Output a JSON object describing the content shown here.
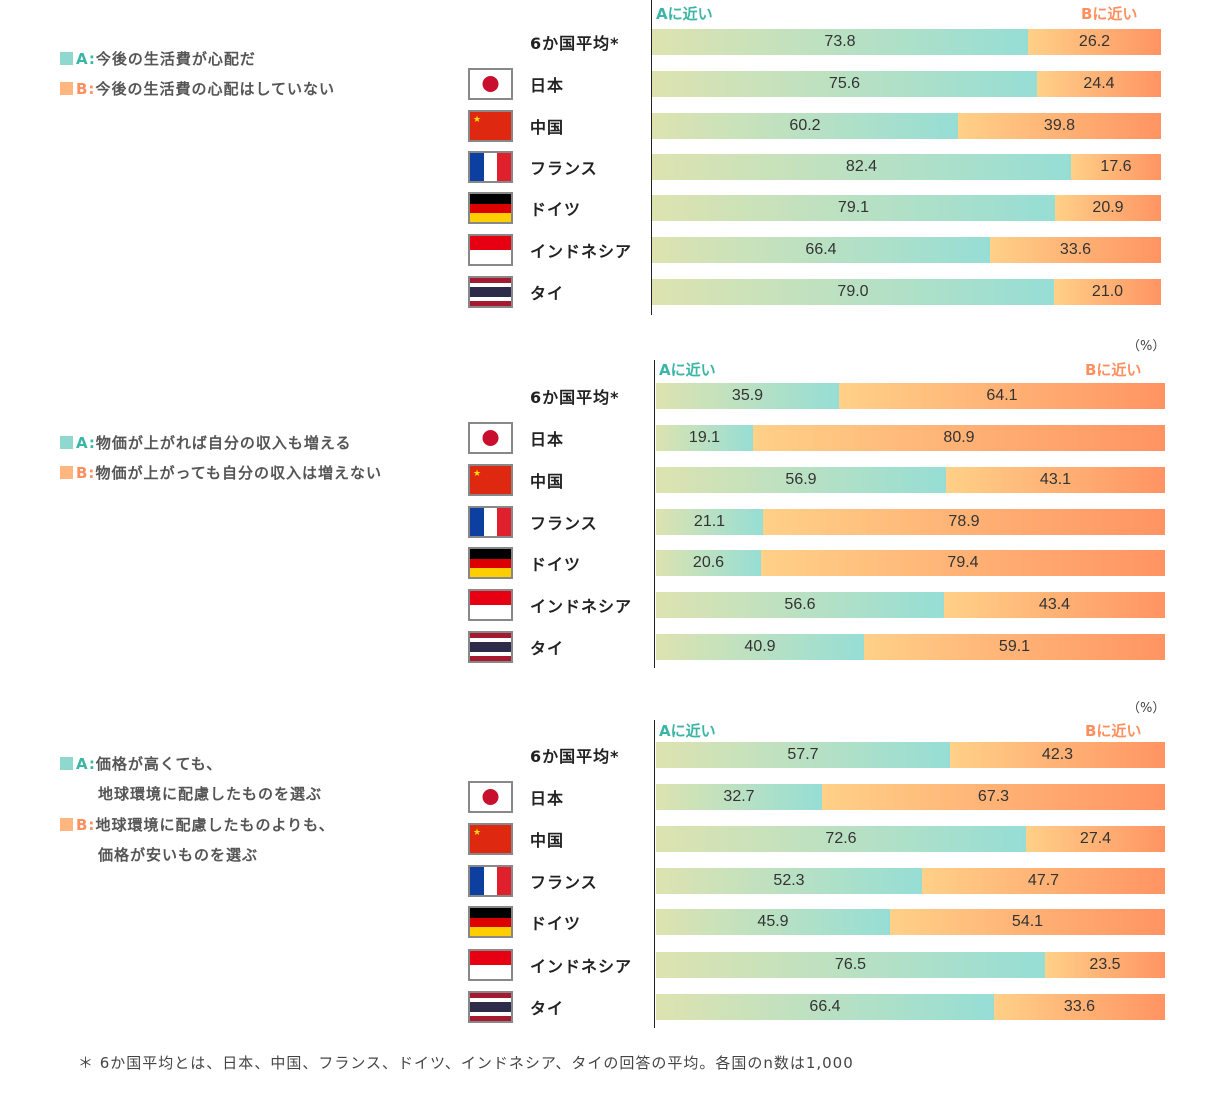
{
  "colors": {
    "a": "#3bb5a5",
    "b": "#ff8f5f",
    "a_square": "#8fd8cf",
    "b_square": "#ffb680"
  },
  "chart_data": [
    {
      "type": "bar",
      "stacked": true,
      "orientation": "horizontal",
      "header_a": "Aに近い",
      "header_b": "Bに近い",
      "unit": "",
      "legend": [
        {
          "key": "A:",
          "lines": [
            "今後の生活費が心配だ"
          ]
        },
        {
          "key": "B:",
          "lines": [
            "今後の生活費の心配はしていない"
          ]
        }
      ],
      "categories": [
        "6か国平均*",
        "日本",
        "中国",
        "フランス",
        "ドイツ",
        "インドネシア",
        "タイ"
      ],
      "series": [
        {
          "name": "A",
          "values": [
            "73.8",
            "75.6",
            "60.2",
            "82.4",
            "79.1",
            "66.4",
            "79.0"
          ]
        },
        {
          "name": "B",
          "values": [
            "26.2",
            "24.4",
            "39.8",
            "17.6",
            "20.9",
            "33.6",
            "21.0"
          ]
        }
      ]
    },
    {
      "type": "bar",
      "stacked": true,
      "orientation": "horizontal",
      "header_a": "Aに近い",
      "header_b": "Bに近い",
      "unit": "（%）",
      "legend": [
        {
          "key": "A:",
          "lines": [
            "物価が上がれば自分の収入も増える"
          ]
        },
        {
          "key": "B:",
          "lines": [
            "物価が上がっても自分の収入は増えない"
          ]
        }
      ],
      "categories": [
        "6か国平均*",
        "日本",
        "中国",
        "フランス",
        "ドイツ",
        "インドネシア",
        "タイ"
      ],
      "series": [
        {
          "name": "A",
          "values": [
            "35.9",
            "19.1",
            "56.9",
            "21.1",
            "20.6",
            "56.6",
            "40.9"
          ]
        },
        {
          "name": "B",
          "values": [
            "64.1",
            "80.9",
            "43.1",
            "78.9",
            "79.4",
            "43.4",
            "59.1"
          ]
        }
      ]
    },
    {
      "type": "bar",
      "stacked": true,
      "orientation": "horizontal",
      "header_a": "Aに近い",
      "header_b": "Bに近い",
      "unit": "（%）",
      "legend": [
        {
          "key": "A:",
          "lines": [
            "価格が高くても、",
            "地球環境に配慮したものを選ぶ"
          ]
        },
        {
          "key": "B:",
          "lines": [
            "地球環境に配慮したものよりも、",
            "価格が安いものを選ぶ"
          ]
        }
      ],
      "categories": [
        "6か国平均*",
        "日本",
        "中国",
        "フランス",
        "ドイツ",
        "インドネシア",
        "タイ"
      ],
      "series": [
        {
          "name": "A",
          "values": [
            "57.7",
            "32.7",
            "72.6",
            "52.3",
            "45.9",
            "76.5",
            "66.4"
          ]
        },
        {
          "name": "B",
          "values": [
            "42.3",
            "67.3",
            "27.4",
            "47.7",
            "54.1",
            "23.5",
            "33.6"
          ]
        }
      ]
    }
  ],
  "flags": [
    null,
    "japan",
    "china",
    "france",
    "germany",
    "indonesia",
    "thailand"
  ],
  "footnote": "＊ 6か国平均とは、日本、中国、フランス、ドイツ、インドネシア、タイの回答の平均。各国のn数は1,000"
}
